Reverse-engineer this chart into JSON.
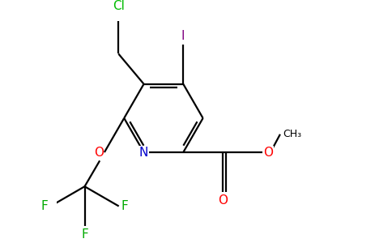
{
  "figsize": [
    4.84,
    3.0
  ],
  "dpi": 100,
  "bg_color": "#ffffff",
  "ring_color": "#000000",
  "N_color": "#0000cd",
  "O_color": "#ff0000",
  "Cl_color": "#00bb00",
  "I_color": "#800080",
  "F_color": "#00aa00",
  "bond_lw": 1.6,
  "font_size": 11,
  "font_size_ch3": 9,
  "xlim": [
    0.0,
    6.0
  ],
  "ylim": [
    -1.2,
    3.5
  ]
}
